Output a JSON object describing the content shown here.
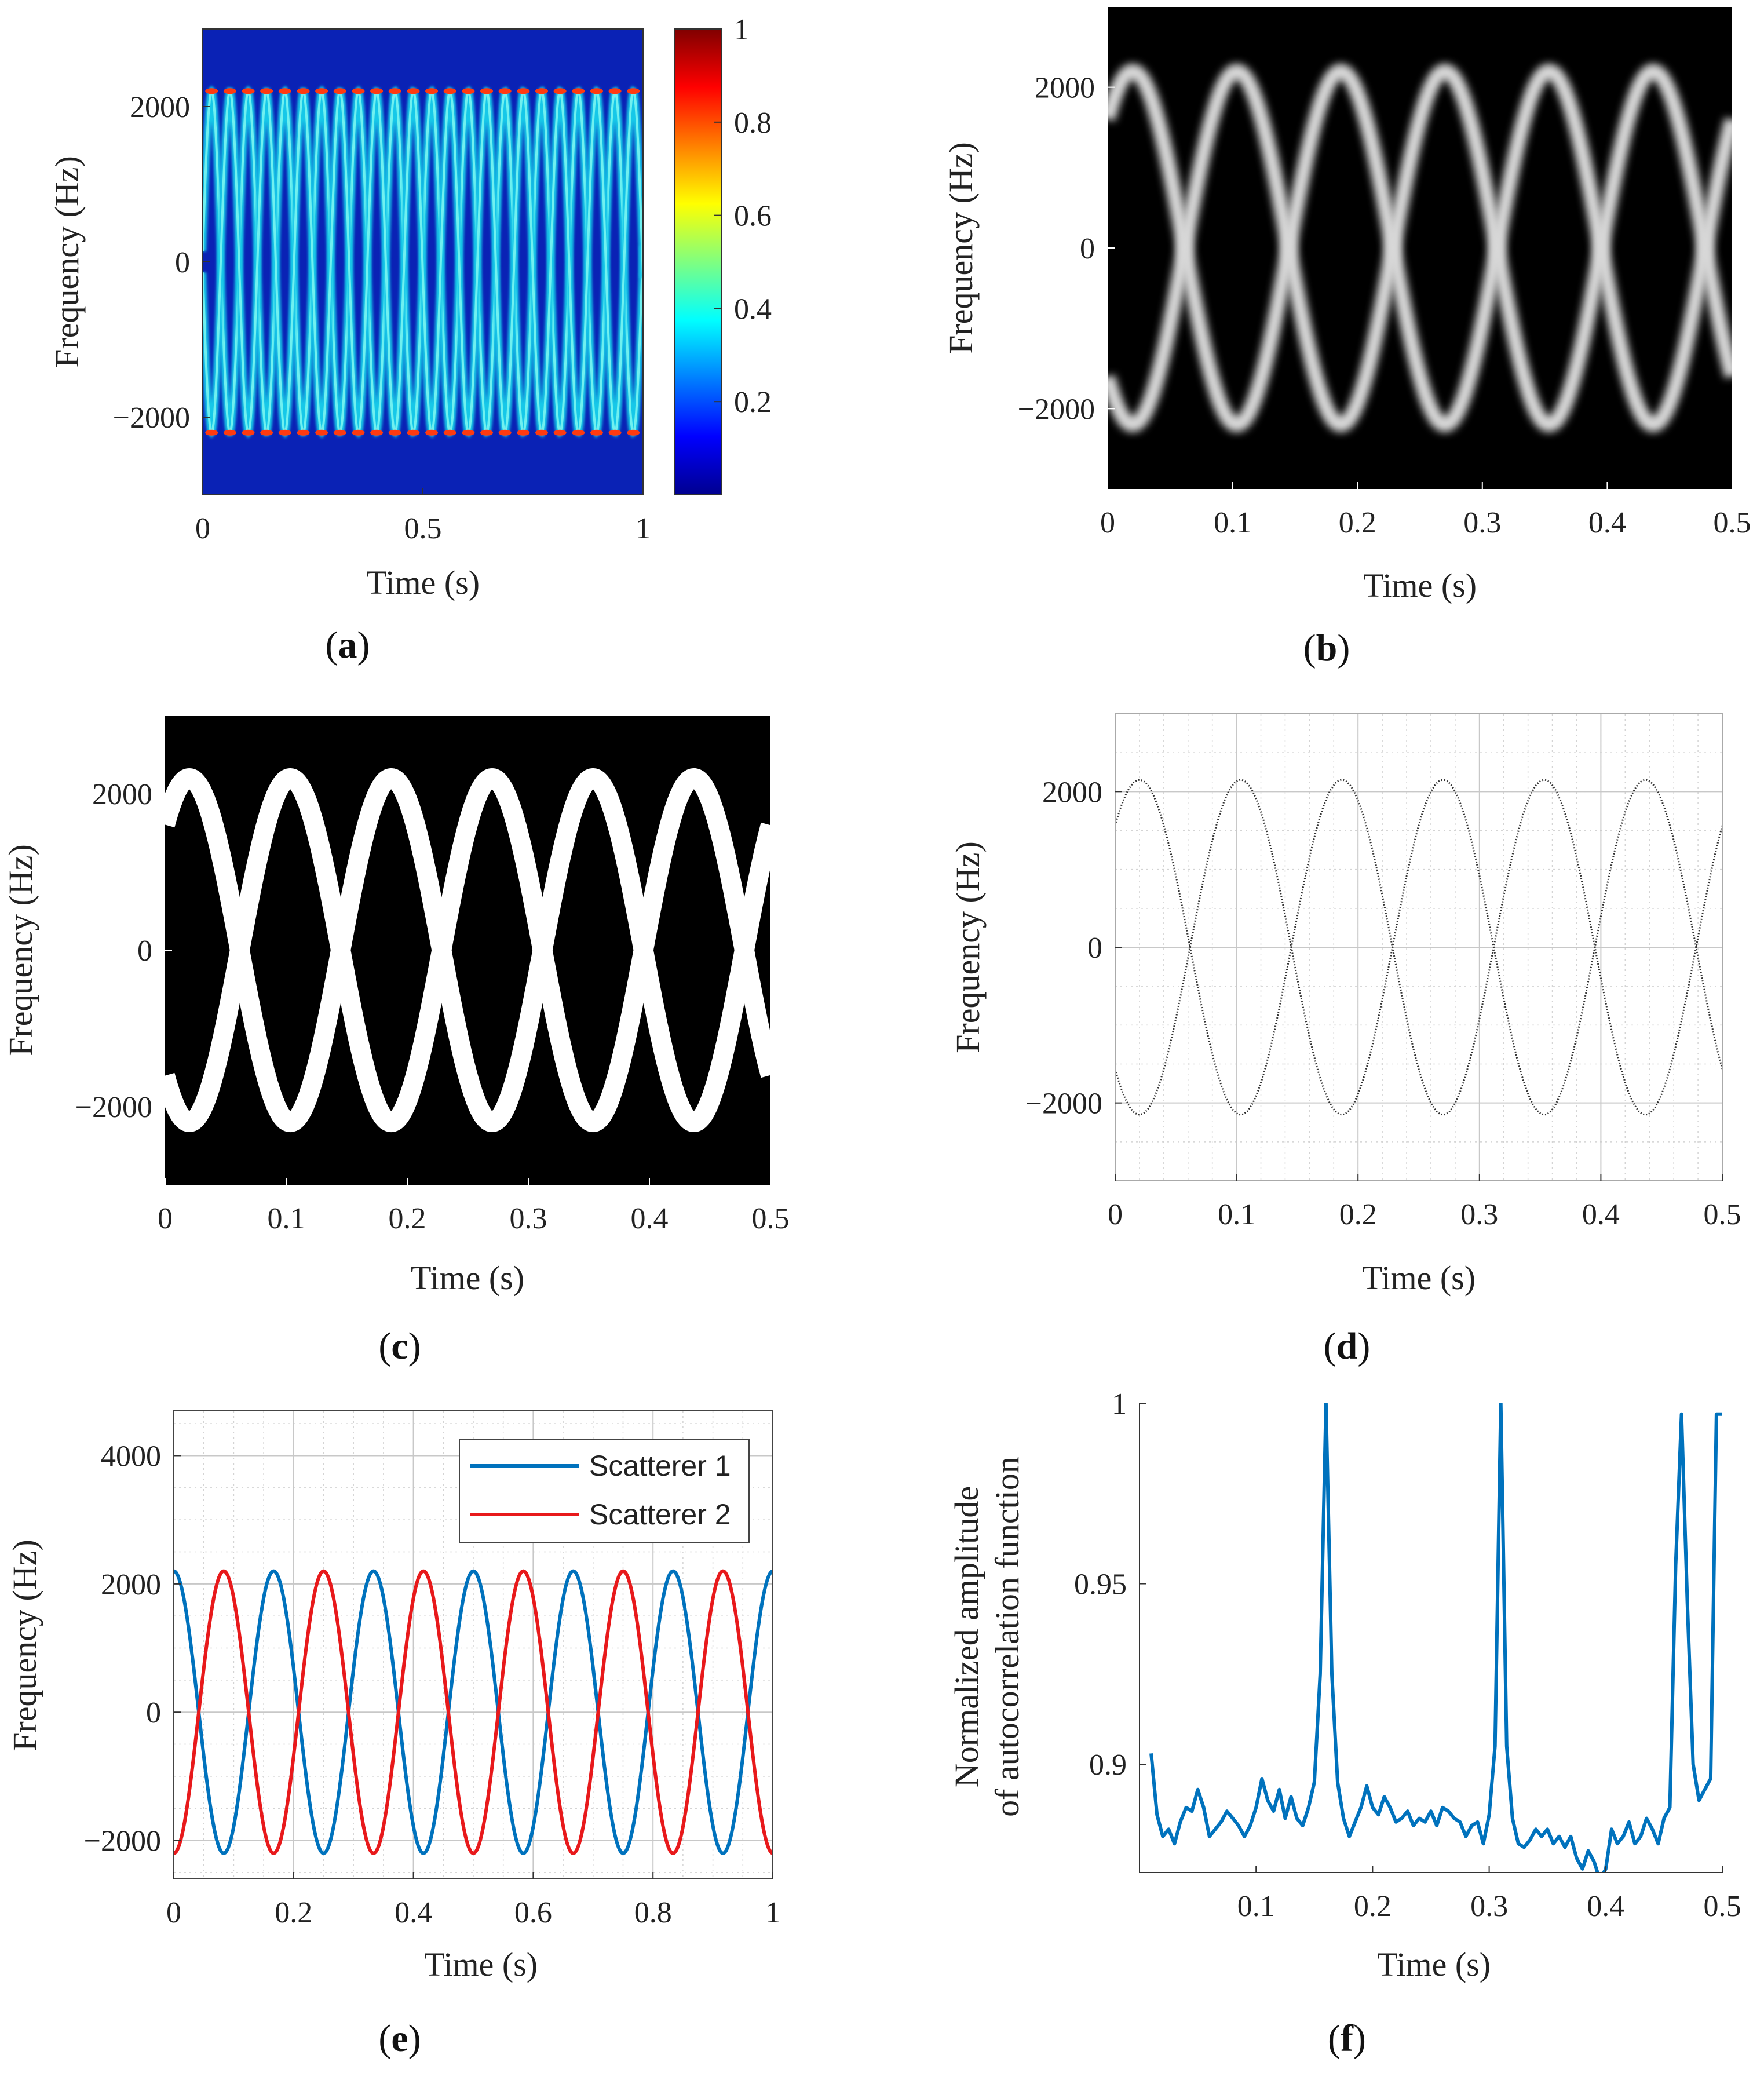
{
  "colors": {
    "jet_bg": "#0a22b5",
    "black_bg": "#000000",
    "scatterer1": "#0072bd",
    "scatterer2": "#e8191b",
    "autocorr": "#0072bd",
    "grid": "#d4d4d4"
  },
  "chart_data": [
    {
      "id": "a",
      "type": "heatmap",
      "caption": "a",
      "xlabel": "Time (s)",
      "ylabel": "Frequency (Hz)",
      "xlim": [
        0,
        1
      ],
      "ylim": [
        -3000,
        3000
      ],
      "xticks": [
        "0",
        "0.5",
        "1"
      ],
      "yticks": [
        "-2000",
        "0",
        "2000"
      ],
      "colormap": "jet",
      "colorbar": {
        "ticks": [
          "0.2",
          "0.4",
          "0.6",
          "0.8",
          "1"
        ],
        "range": [
          0,
          1
        ]
      },
      "curves": {
        "amplitude_hz": 2200,
        "period_s": 0.0833,
        "phase_s": 0.02,
        "count": 2
      }
    },
    {
      "id": "b",
      "type": "heatmap",
      "caption": "b",
      "xlabel": "Time (s)",
      "ylabel": "Frequency (Hz)",
      "xlim": [
        0,
        0.5
      ],
      "ylim": [
        -3000,
        3000
      ],
      "xticks": [
        "0",
        "0.1",
        "0.2",
        "0.3",
        "0.4",
        "0.5"
      ],
      "yticks": [
        "-2000",
        "0",
        "2000"
      ],
      "colormap": "gray",
      "curves": {
        "amplitude_hz": 2200,
        "period_s": 0.1667,
        "phase_s": 0.02,
        "count": 2
      }
    },
    {
      "id": "c",
      "type": "heatmap",
      "caption": "c",
      "xlabel": "Time (s)",
      "ylabel": "Frequency (Hz)",
      "xlim": [
        0,
        0.5
      ],
      "ylim": [
        -3000,
        3000
      ],
      "xticks": [
        "0",
        "0.1",
        "0.2",
        "0.3",
        "0.4",
        "0.5"
      ],
      "yticks": [
        "-2000",
        "0",
        "2000"
      ],
      "colormap": "binary",
      "curves": {
        "amplitude_hz": 2200,
        "period_s": 0.1667,
        "phase_s": 0.02,
        "count": 2
      }
    },
    {
      "id": "d",
      "type": "scatter",
      "caption": "d",
      "xlabel": "Time (s)",
      "ylabel": "Frequency (Hz)",
      "xlim": [
        0,
        0.5
      ],
      "ylim": [
        -3000,
        3000
      ],
      "xticks": [
        "0",
        "0.1",
        "0.2",
        "0.3",
        "0.4",
        "0.5"
      ],
      "yticks": [
        "-2000",
        "0",
        "2000"
      ],
      "grid": true,
      "curves": {
        "amplitude_hz": 2150,
        "period_s": 0.1667,
        "phase_s": 0.02,
        "count": 2
      }
    },
    {
      "id": "e",
      "type": "line",
      "caption": "e",
      "xlabel": "Time (s)",
      "ylabel": "Frequency (Hz)",
      "xlim": [
        0,
        1
      ],
      "ylim": [
        -2600,
        4700
      ],
      "xticks": [
        "0",
        "0.2",
        "0.4",
        "0.6",
        "0.8",
        "1"
      ],
      "yticks": [
        "-2000",
        "0",
        "2000",
        "4000"
      ],
      "grid": true,
      "legend": "top-right",
      "series": [
        {
          "name": "Scatterer 1",
          "amplitude_hz": 2200,
          "period_s": 0.1667,
          "phase_s": 0.0,
          "color": "#0072bd"
        },
        {
          "name": "Scatterer 2",
          "amplitude_hz": 2200,
          "period_s": 0.1667,
          "phase_s": 0.0,
          "inverted": true,
          "color": "#e8191b"
        }
      ]
    },
    {
      "id": "f",
      "type": "line",
      "caption": "f",
      "xlabel": "Time (s)",
      "ylabel_line1": "Normalized amplitude",
      "ylabel_line2": "of autocorrelation function",
      "xlim": [
        0,
        0.5
      ],
      "ylim": [
        0.87,
        1.0
      ],
      "xticks": [
        "0.1",
        "0.2",
        "0.3",
        "0.4",
        "0.5"
      ],
      "yticks": [
        "0.9",
        "0.95",
        "1"
      ],
      "grid": false,
      "x": [
        0.01,
        0.015,
        0.02,
        0.025,
        0.03,
        0.035,
        0.04,
        0.045,
        0.05,
        0.055,
        0.06,
        0.065,
        0.07,
        0.075,
        0.08,
        0.085,
        0.09,
        0.095,
        0.1,
        0.105,
        0.11,
        0.115,
        0.12,
        0.125,
        0.13,
        0.135,
        0.14,
        0.145,
        0.15,
        0.155,
        0.16,
        0.165,
        0.17,
        0.175,
        0.18,
        0.185,
        0.19,
        0.195,
        0.2,
        0.205,
        0.21,
        0.215,
        0.22,
        0.225,
        0.23,
        0.235,
        0.24,
        0.245,
        0.25,
        0.255,
        0.26,
        0.265,
        0.27,
        0.275,
        0.28,
        0.285,
        0.29,
        0.295,
        0.3,
        0.305,
        0.31,
        0.315,
        0.32,
        0.325,
        0.33,
        0.335,
        0.34,
        0.345,
        0.35,
        0.355,
        0.36,
        0.365,
        0.37,
        0.375,
        0.38,
        0.385,
        0.39,
        0.395,
        0.4,
        0.405,
        0.41,
        0.415,
        0.42,
        0.425,
        0.43,
        0.435,
        0.44,
        0.445,
        0.45,
        0.455,
        0.46,
        0.465,
        0.47,
        0.475,
        0.48,
        0.485,
        0.49,
        0.495,
        0.5
      ],
      "y": [
        0.903,
        0.886,
        0.88,
        0.882,
        0.878,
        0.884,
        0.888,
        0.887,
        0.893,
        0.888,
        0.88,
        0.882,
        0.884,
        0.887,
        0.885,
        0.883,
        0.88,
        0.883,
        0.888,
        0.896,
        0.89,
        0.887,
        0.893,
        0.885,
        0.891,
        0.885,
        0.883,
        0.888,
        0.895,
        0.925,
        1.0,
        0.925,
        0.895,
        0.885,
        0.88,
        0.884,
        0.888,
        0.894,
        0.888,
        0.886,
        0.891,
        0.888,
        0.884,
        0.885,
        0.887,
        0.883,
        0.885,
        0.884,
        0.887,
        0.883,
        0.888,
        0.887,
        0.885,
        0.884,
        0.88,
        0.883,
        0.884,
        0.878,
        0.886,
        0.905,
        1.0,
        0.905,
        0.885,
        0.878,
        0.877,
        0.879,
        0.882,
        0.88,
        0.882,
        0.878,
        0.88,
        0.877,
        0.88,
        0.874,
        0.871,
        0.876,
        0.873,
        0.868,
        0.871,
        0.882,
        0.878,
        0.88,
        0.884,
        0.878,
        0.88,
        0.885,
        0.882,
        0.878,
        0.885,
        0.888,
        0.955,
        0.997,
        0.945,
        0.9,
        0.89,
        0.893,
        0.896,
        0.997,
        0.997
      ]
    }
  ],
  "captions": {
    "a": "a",
    "b": "b",
    "c": "c",
    "d": "d",
    "e": "e",
    "f": "f"
  },
  "legend": {
    "s1": "Scatterer 1",
    "s2": "Scatterer 2"
  }
}
